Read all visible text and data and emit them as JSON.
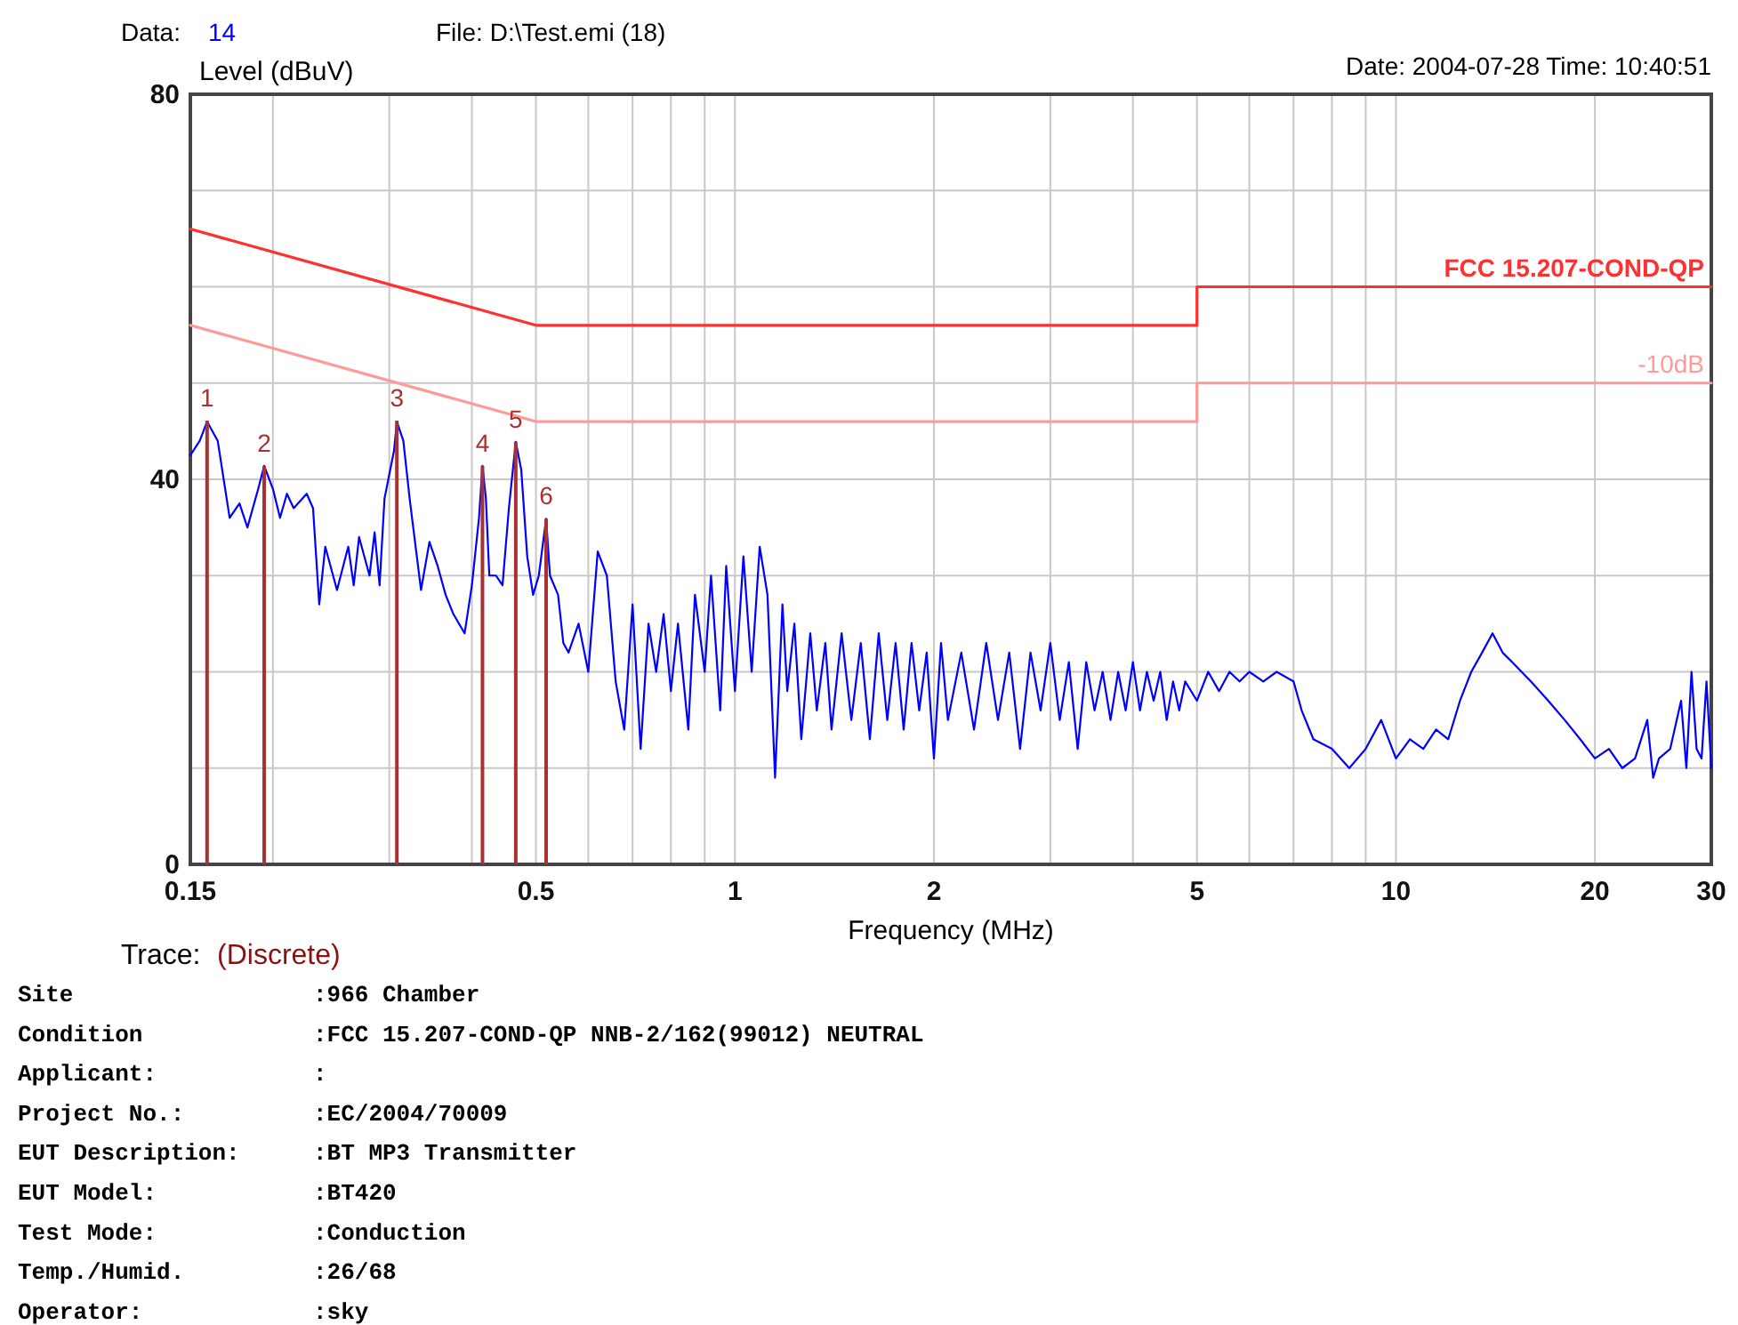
{
  "chart_data": {
    "type": "line",
    "xlabel": "Frequency (MHz)",
    "ylabel": "Level (dBuV)",
    "annotations": [
      "Data:",
      "14",
      "File: D:\\Test.emi  (18)",
      "Date: 2004-07-28  Time: 10:40:51",
      "Trace:",
      "(Discrete)",
      "Site",
      ":966 Chamber",
      "Condition",
      ":FCC 15.207-COND-QP NNB-2/162(99012) NEUTRAL",
      "Applicant:",
      ":",
      "Project No.:",
      ":EC/2004/70009",
      "EUT Description:",
      ":BT MP3  Transmitter",
      "EUT Model:",
      ":BT420",
      "Test Mode:",
      ":Conduction",
      "Temp./Humid.",
      ":26/68",
      "Operator:",
      ":sky",
      {
        "text": "1",
        "x": 0.159,
        "y": 46.1
      },
      {
        "text": "2",
        "x": 0.194,
        "y": 41.4
      },
      {
        "text": "3",
        "x": 0.308,
        "y": 46.1
      },
      {
        "text": "4",
        "x": 0.415,
        "y": 41.4
      },
      {
        "text": "5",
        "x": 0.466,
        "y": 43.9
      },
      {
        "text": "6",
        "x": 0.518,
        "y": 35.9
      }
    ],
    "log": "x",
    "grid": true,
    "legend": false,
    "marker": "none",
    "line_style": "solid",
    "xlim": [
      0.15,
      30
    ],
    "ylim": [
      0,
      80
    ],
    "xticks": [
      0.15,
      {
        "value": 0.2,
        "label": null
      },
      {
        "value": 0.3,
        "label": null
      },
      {
        "value": 0.4,
        "label": null
      },
      0.5,
      {
        "value": 0.6,
        "label": null
      },
      {
        "value": 0.7,
        "label": null
      },
      {
        "value": 0.8,
        "label": null
      },
      {
        "value": 0.9,
        "label": null
      },
      1,
      2,
      {
        "value": 3,
        "label": null
      },
      {
        "value": 4,
        "label": null
      },
      5,
      {
        "value": 6,
        "label": null
      },
      {
        "value": 7,
        "label": null
      },
      {
        "value": 8,
        "label": null
      },
      {
        "value": 9,
        "label": null
      },
      10,
      20,
      30
    ],
    "yticks": [
      0,
      {
        "value": 10,
        "label": null
      },
      {
        "value": 20,
        "label": null
      },
      {
        "value": 30,
        "label": null
      },
      40,
      {
        "value": 50,
        "label": null
      },
      {
        "value": 60,
        "label": null
      },
      {
        "value": 70,
        "label": null
      },
      80
    ],
    "series": [
      {
        "color": "#0000ff",
        "x": [
          0.15,
          0.155,
          0.159,
          0.165,
          0.172,
          0.178,
          0.183,
          0.19,
          0.194,
          0.2,
          0.205,
          0.21,
          0.215,
          0.225,
          0.23,
          0.235,
          0.24,
          0.25,
          0.26,
          0.265,
          0.27,
          0.28,
          0.285,
          0.29,
          0.295,
          0.305,
          0.308,
          0.315,
          0.322,
          0.335,
          0.345,
          0.355,
          0.365,
          0.375,
          0.39,
          0.4,
          0.41,
          0.415,
          0.42,
          0.425,
          0.435,
          0.445,
          0.455,
          0.466,
          0.475,
          0.485,
          0.495,
          0.505,
          0.518,
          0.525,
          0.54,
          0.55,
          0.56,
          0.58,
          0.6,
          0.62,
          0.64,
          0.66,
          0.68,
          0.7,
          0.72,
          0.74,
          0.76,
          0.78,
          0.8,
          0.82,
          0.85,
          0.87,
          0.9,
          0.92,
          0.95,
          0.97,
          1.0,
          1.03,
          1.06,
          1.09,
          1.12,
          1.15,
          1.18,
          1.2,
          1.23,
          1.26,
          1.3,
          1.33,
          1.37,
          1.4,
          1.45,
          1.5,
          1.55,
          1.6,
          1.65,
          1.7,
          1.75,
          1.8,
          1.85,
          1.9,
          1.95,
          2.0,
          2.05,
          2.1,
          2.2,
          2.3,
          2.4,
          2.5,
          2.6,
          2.7,
          2.8,
          2.9,
          3.0,
          3.1,
          3.2,
          3.3,
          3.4,
          3.5,
          3.6,
          3.7,
          3.8,
          3.9,
          4.0,
          4.1,
          4.2,
          4.3,
          4.4,
          4.5,
          4.6,
          4.7,
          4.8,
          5.0,
          5.2,
          5.4,
          5.6,
          5.8,
          6.0,
          6.3,
          6.6,
          7.0,
          7.2,
          7.5,
          8.0,
          8.5,
          9.0,
          9.5,
          10,
          10.5,
          11,
          11.5,
          12,
          12.5,
          13,
          13.5,
          14,
          14.5,
          15,
          16,
          17,
          18,
          19,
          20,
          21,
          22,
          23,
          24,
          24.5,
          25,
          26,
          27,
          27.5,
          28,
          28.5,
          29,
          29.5,
          30
        ],
        "values": [
          42.5,
          44,
          46,
          44,
          36,
          37.5,
          35,
          39,
          41.4,
          39,
          36,
          38.5,
          37,
          38.5,
          37,
          27,
          33,
          28.5,
          33,
          29,
          34,
          30,
          34.5,
          29,
          38,
          43,
          46,
          44,
          38,
          28.5,
          33.5,
          31,
          28,
          26,
          24,
          29,
          36,
          41.4,
          38,
          30,
          30,
          29,
          37,
          43.9,
          41,
          32,
          28,
          30,
          35.9,
          30,
          28,
          23,
          22,
          25,
          20,
          32.5,
          30,
          19,
          14,
          27,
          12,
          25,
          20,
          26,
          18,
          25,
          14,
          28,
          20,
          30,
          16,
          31,
          18,
          32,
          20,
          33,
          28,
          9,
          27,
          18,
          25,
          13,
          24,
          16,
          23,
          14,
          24,
          15,
          23,
          13,
          24,
          15,
          23,
          14,
          23,
          16,
          22,
          11,
          23,
          15,
          22,
          14,
          23,
          15,
          22,
          12,
          22,
          16,
          23,
          15,
          21,
          12,
          21,
          16,
          20,
          15,
          20,
          16,
          21,
          16,
          20,
          17,
          20,
          15,
          19,
          16,
          19,
          17,
          20,
          18,
          20,
          19,
          20,
          19,
          20,
          19,
          16,
          13,
          12,
          10,
          12,
          15,
          11,
          13,
          12,
          14,
          13,
          17,
          20,
          22,
          24,
          22,
          21,
          19,
          17,
          15,
          13,
          11,
          12,
          10,
          11,
          15,
          9,
          11,
          12,
          17,
          10,
          20,
          12,
          11,
          19,
          10
        ]
      },
      {
        "type": "line",
        "name": "FCC 15.207-COND-QP",
        "color": "#ff3030",
        "x": [
          0.15,
          0.5,
          5,
          5,
          30
        ],
        "values": [
          66,
          56,
          56,
          60,
          60
        ]
      },
      {
        "type": "line",
        "name": "-10dB",
        "color": "#ff9a9a",
        "x": [
          0.15,
          0.5,
          5,
          5,
          30
        ],
        "values": [
          56,
          46,
          46,
          50,
          50
        ]
      },
      {
        "type": "bar",
        "color": "#a83232",
        "x": [
          0.159,
          0.194,
          0.308,
          0.415,
          0.466,
          0.518
        ],
        "values": [
          46.1,
          41.4,
          46.1,
          41.4,
          43.9,
          35.9
        ]
      }
    ]
  }
}
